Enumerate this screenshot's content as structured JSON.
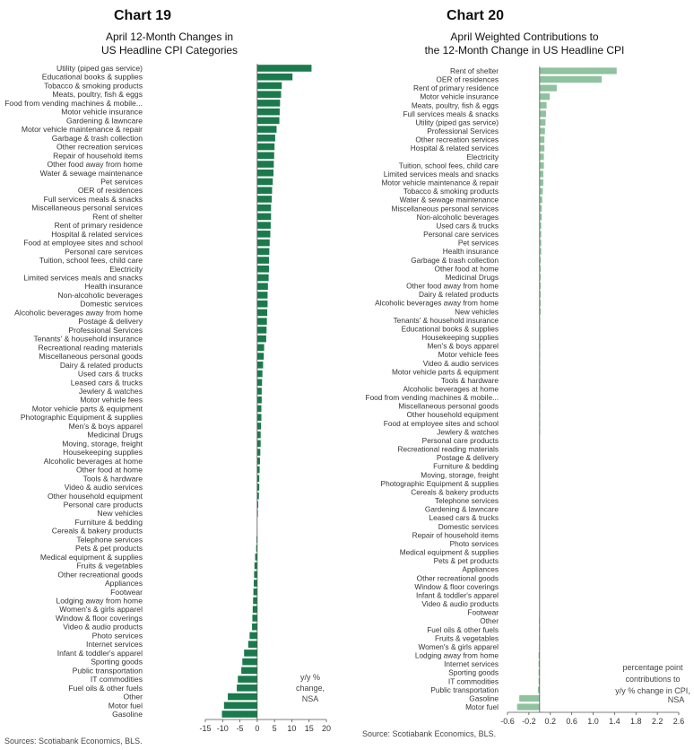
{
  "chart_data": [
    {
      "type": "bar",
      "orientation": "horizontal",
      "chart_number": "Chart 19",
      "title_lines": [
        "April 12-Month Changes in",
        "US Headline CPI Categories"
      ],
      "annotation_lines": [
        "y/y %",
        "change,",
        "NSA"
      ],
      "source": "Sources: Scotiabank Economics, BLS.",
      "xlim": [
        -15,
        20
      ],
      "xticks": [
        -15,
        -10,
        -5,
        0,
        5,
        10,
        15,
        20
      ],
      "grid": false,
      "bar_color": "#1a7a4c",
      "categories": [
        "Utility (piped gas service)",
        "Educational books & supplies",
        "Tobacco & smoking products",
        "Meats, poultry, fish & eggs",
        "Food from vending machines & mobile...",
        "Motor vehicle insurance",
        "Gardening & lawncare",
        "Motor vehicle maintenance & repair",
        "Garbage & trash collection",
        "Other recreation services",
        "Repair of household items",
        "Other food away from home",
        "Water & sewage maintenance",
        "Pet services",
        "OER of residences",
        "Full services meals & snacks",
        "Miscellaneous personal services",
        "Rent of shelter",
        "Rent of primary residence",
        "Hospital & related services",
        "Food at employee sites and school",
        "Personal care services",
        "Tuition, school fees, child care",
        "Electricity",
        "Limited services meals and snacks",
        "Health insurance",
        "Non-alcoholic beverages",
        "Domestic services",
        "Alcoholic beverages away from home",
        "Postage & delivery",
        "Professional Services",
        "Tenants' & household insurance",
        "Recreational reading materials",
        "Miscellaneous personal goods",
        "Dairy & related products",
        "Used cars & trucks",
        "Leased cars & trucks",
        "Jewlery & watches",
        "Motor vehicle fees",
        "Motor vehicle parts & equipment",
        "Photographic Equipment & supplies",
        "Men's & boys apparel",
        "Medicinal Drugs",
        "Moving, storage, freight",
        "Housekeeping supplies",
        "Alcoholic beverages at home",
        "Other food at home",
        "Tools & hardware",
        "Video & audio services",
        "Other household equipment",
        "Personal care products",
        "New vehicles",
        "Furniture & bedding",
        "Cereals & bakery products",
        "Telephone services",
        "Pets & pet products",
        "Medical equipment & supplies",
        "Fruits & vegetables",
        "Other recreational goods",
        "Appliances",
        "Footwear",
        "Lodging away from home",
        "Women's & girls apparel",
        "Window & floor coverings",
        "Video & audio products",
        "Photo services",
        "Internet services",
        "Infant & toddler's apparel",
        "Sporting goods",
        "Public transportation",
        "IT commodities",
        "Fuel oils & other fuels",
        "Other",
        "Motor fuel",
        "Gasoline"
      ],
      "values": [
        15.7,
        10.2,
        7.1,
        6.9,
        6.6,
        6.5,
        6.4,
        5.6,
        5.2,
        5.0,
        4.9,
        4.8,
        4.7,
        4.5,
        4.3,
        4.2,
        4.0,
        4.0,
        3.9,
        3.8,
        3.6,
        3.5,
        3.4,
        3.4,
        3.3,
        3.1,
        3.0,
        3.0,
        2.9,
        2.8,
        2.7,
        2.6,
        2.0,
        1.9,
        1.7,
        1.5,
        1.4,
        1.3,
        1.3,
        1.2,
        1.2,
        1.1,
        1.0,
        1.0,
        0.9,
        0.8,
        0.7,
        0.6,
        0.6,
        0.5,
        0.3,
        0.2,
        0.0,
        -0.1,
        -0.2,
        -0.3,
        -0.6,
        -0.8,
        -0.9,
        -1.0,
        -1.1,
        -1.2,
        -1.3,
        -1.4,
        -1.5,
        -2.2,
        -2.6,
        -3.8,
        -4.3,
        -4.6,
        -5.6,
        -5.9,
        -8.5,
        -9.6,
        -10.2
      ]
    },
    {
      "type": "bar",
      "orientation": "horizontal",
      "chart_number": "Chart 20",
      "title_lines": [
        "April Weighted Contributions to",
        "the 12-Month Change in US Headline CPI"
      ],
      "annotation_lines": [
        "percentage point",
        "contributions to",
        "y/y % change in CPI,",
        "NSA"
      ],
      "source": "Source: Scotiabank Economics, BLS.",
      "xlim": [
        -0.6,
        2.6
      ],
      "xticks": [
        "-0.6",
        "-0.2",
        "0.2",
        "0.6",
        "1.0",
        "1.4",
        "1.8",
        "2.2",
        "2.6"
      ],
      "grid": false,
      "bar_color": "#8fc29f",
      "categories": [
        "Rent of shelter",
        "OER of residences",
        "Rent of primary residence",
        "Motor vehicle insurance",
        "Meats, poultry, fish & eggs",
        "Full services meals & snacks",
        "Utility (piped gas service)",
        "Professional Services",
        "Other recreation services",
        "Hospital & related services",
        "Electricity",
        "Tuition, school fees, child care",
        "Limited services meals and snacks",
        "Motor vehicle maintenance & repair",
        "Tobacco & smoking products",
        "Water & sewage maintenance",
        "Miscellaneous personal services",
        "Non-alcoholic beverages",
        "Used cars & trucks",
        "Personal care services",
        "Pet services",
        "Health insurance",
        "Garbage & trash collection",
        "Other food at home",
        "Medicinal Drugs",
        "Other food away from home",
        "Dairy & related products",
        "Alcoholic beverages away from home",
        "New vehicles",
        "Tenants' & household insurance",
        "Educational books & supplies",
        "Housekeeping supplies",
        "Men's & boys apparel",
        "Motor vehicle fees",
        "Video & audio services",
        "Motor vehicle parts & equipment",
        "Tools & hardware",
        "Alcoholic beverages at home",
        "Food from vending machines & mobile...",
        "Miscellaneous personal goods",
        "Other household equipment",
        "Food at employee sites and school",
        "Jewlery & watches",
        "Personal care products",
        "Recreational reading materials",
        "Postage & delivery",
        "Furniture & bedding",
        "Moving, storage, freight",
        "Photographic Equipment & supplies",
        "Cereals & bakery products",
        "Telephone services",
        "Gardening & lawncare",
        "Leased cars & trucks",
        "Domestic services",
        "Repair of household items",
        "Photo services",
        "Medical equipment & supplies",
        "Pets & pet products",
        "Appliances",
        "Other recreational goods",
        "Window & floor coverings",
        "Infant & toddler's apparel",
        "Video & audio products",
        "Footwear",
        "Other",
        "Fuel oils & other fuels",
        "Fruits & vegetables",
        "Women's & girls apparel",
        "Lodging away from home",
        "Internet services",
        "Sporting goods",
        "IT commodities",
        "Public transportation",
        "Gasoline",
        "Motor fuel"
      ],
      "values": [
        1.44,
        1.16,
        0.32,
        0.19,
        0.13,
        0.12,
        0.11,
        0.1,
        0.09,
        0.09,
        0.08,
        0.08,
        0.07,
        0.07,
        0.06,
        0.05,
        0.04,
        0.04,
        0.03,
        0.03,
        0.03,
        0.03,
        0.02,
        0.02,
        0.02,
        0.02,
        0.02,
        0.02,
        0.02,
        0.01,
        0.01,
        0.01,
        0.01,
        0.01,
        0.01,
        0.01,
        0.01,
        0.01,
        0.01,
        0.01,
        0.01,
        0.01,
        0.01,
        0.0,
        0.0,
        0.0,
        0.0,
        0.0,
        0.0,
        0.0,
        0.0,
        0.0,
        0.0,
        0.0,
        0.0,
        0.0,
        0.0,
        0.0,
        0.0,
        0.0,
        0.0,
        0.0,
        0.0,
        0.0,
        -0.01,
        -0.01,
        -0.01,
        -0.01,
        -0.02,
        -0.02,
        -0.02,
        -0.02,
        -0.03,
        -0.38,
        -0.42
      ]
    }
  ]
}
